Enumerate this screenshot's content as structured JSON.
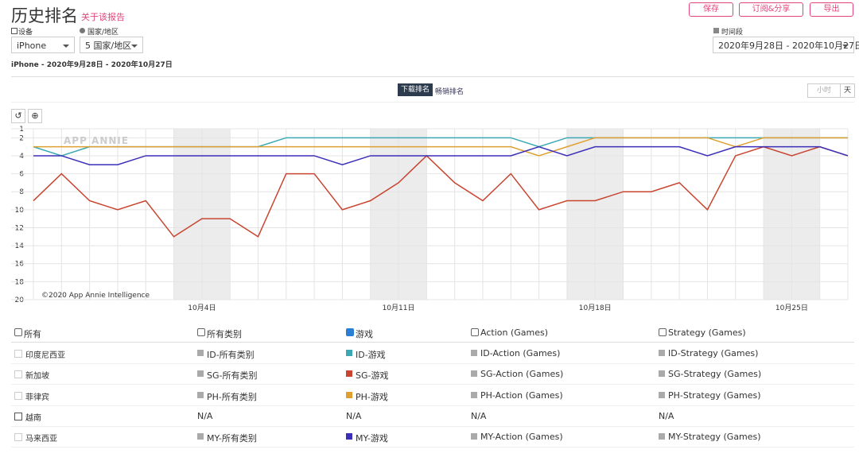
{
  "header": {
    "title": "历史排名",
    "link": "关于该报告",
    "buttons": [
      "保存",
      "订阅&分享",
      "导出"
    ]
  },
  "filters": {
    "device_label": "设备",
    "device": "iPhone",
    "country_label": "国家/地区",
    "country": "5 国家/地区",
    "period_label": "时间段",
    "period": "2020年9月28日 - 2020年10月27日"
  },
  "subtitle": "iPhone - 2020年9月28日 - 2020年10月27日",
  "tabs": [
    "下载排名",
    "畅销排名"
  ],
  "granularity": [
    "小时",
    "天"
  ],
  "chart_data": {
    "type": "line",
    "watermark": "APP ANNIE",
    "credit": "©2020 App Annie Intelligence",
    "categories": [
      null,
      null,
      null,
      null,
      null,
      null,
      "10月4日",
      null,
      null,
      null,
      null,
      null,
      null,
      "10月11日",
      null,
      null,
      null,
      null,
      null,
      null,
      "10月18日",
      null,
      null,
      null,
      null,
      null,
      null,
      "10月25日",
      null,
      null
    ],
    "ylim": [
      1,
      20
    ],
    "yticks": [
      1,
      2,
      4,
      6,
      8,
      10,
      12,
      14,
      16,
      18,
      20
    ],
    "y_inverted": true,
    "grid": true,
    "series": [
      {
        "name": "ID-游戏",
        "color": "#3aa9b4",
        "values": [
          3,
          4,
          3,
          3,
          3,
          3,
          3,
          3,
          3,
          2,
          2,
          2,
          2,
          2,
          2,
          2,
          2,
          2,
          3,
          2,
          2,
          2,
          2,
          2,
          2,
          2,
          2,
          2,
          2,
          2
        ]
      },
      {
        "name": "SG-游戏",
        "color": "#c8452f",
        "values": [
          9,
          6,
          9,
          10,
          9,
          13,
          11,
          11,
          13,
          6,
          6,
          10,
          9,
          7,
          4,
          7,
          9,
          6,
          10,
          9,
          9,
          8,
          8,
          7,
          10,
          4,
          3,
          4,
          3,
          4
        ]
      },
      {
        "name": "PH-游戏",
        "color": "#e0a030",
        "values": [
          3,
          3,
          3,
          3,
          3,
          3,
          3,
          3,
          3,
          3,
          3,
          3,
          3,
          3,
          3,
          3,
          3,
          3,
          4,
          3,
          2,
          2,
          2,
          2,
          2,
          3,
          2,
          2,
          2,
          2
        ]
      },
      {
        "name": "MY-游戏",
        "color": "#3b2fb8",
        "values": [
          4,
          4,
          5,
          5,
          4,
          4,
          4,
          4,
          4,
          4,
          4,
          5,
          4,
          4,
          4,
          4,
          4,
          4,
          3,
          4,
          3,
          3,
          3,
          3,
          4,
          3,
          3,
          3,
          3,
          4
        ]
      }
    ]
  },
  "table": {
    "header": [
      "所有",
      "所有类别",
      "游戏",
      "Action (Games)",
      "Strategy (Games)"
    ],
    "rows": [
      {
        "country": "印度尼西亚",
        "cells": [
          "ID-所有类别",
          "ID-Action (Games)",
          "ID-Strategy (Games)"
        ]
      },
      {
        "country": "新加坡",
        "cells": [
          "SG-所有类别",
          "SG-Action (Games)",
          "SG-Strategy (Games)"
        ]
      },
      {
        "country": "菲律宾",
        "cells": [
          "PH-所有类别",
          "PH-Action (Games)",
          "PH-Strategy (Games)"
        ]
      },
      {
        "country": "越南",
        "cells": [
          "N/A",
          "N/A",
          "N/A",
          "N/A"
        ]
      },
      {
        "country": "马来西亚",
        "cells": [
          "MY-所有类别",
          "MY-Action (Games)",
          "MY-Strategy (Games)"
        ]
      }
    ]
  }
}
